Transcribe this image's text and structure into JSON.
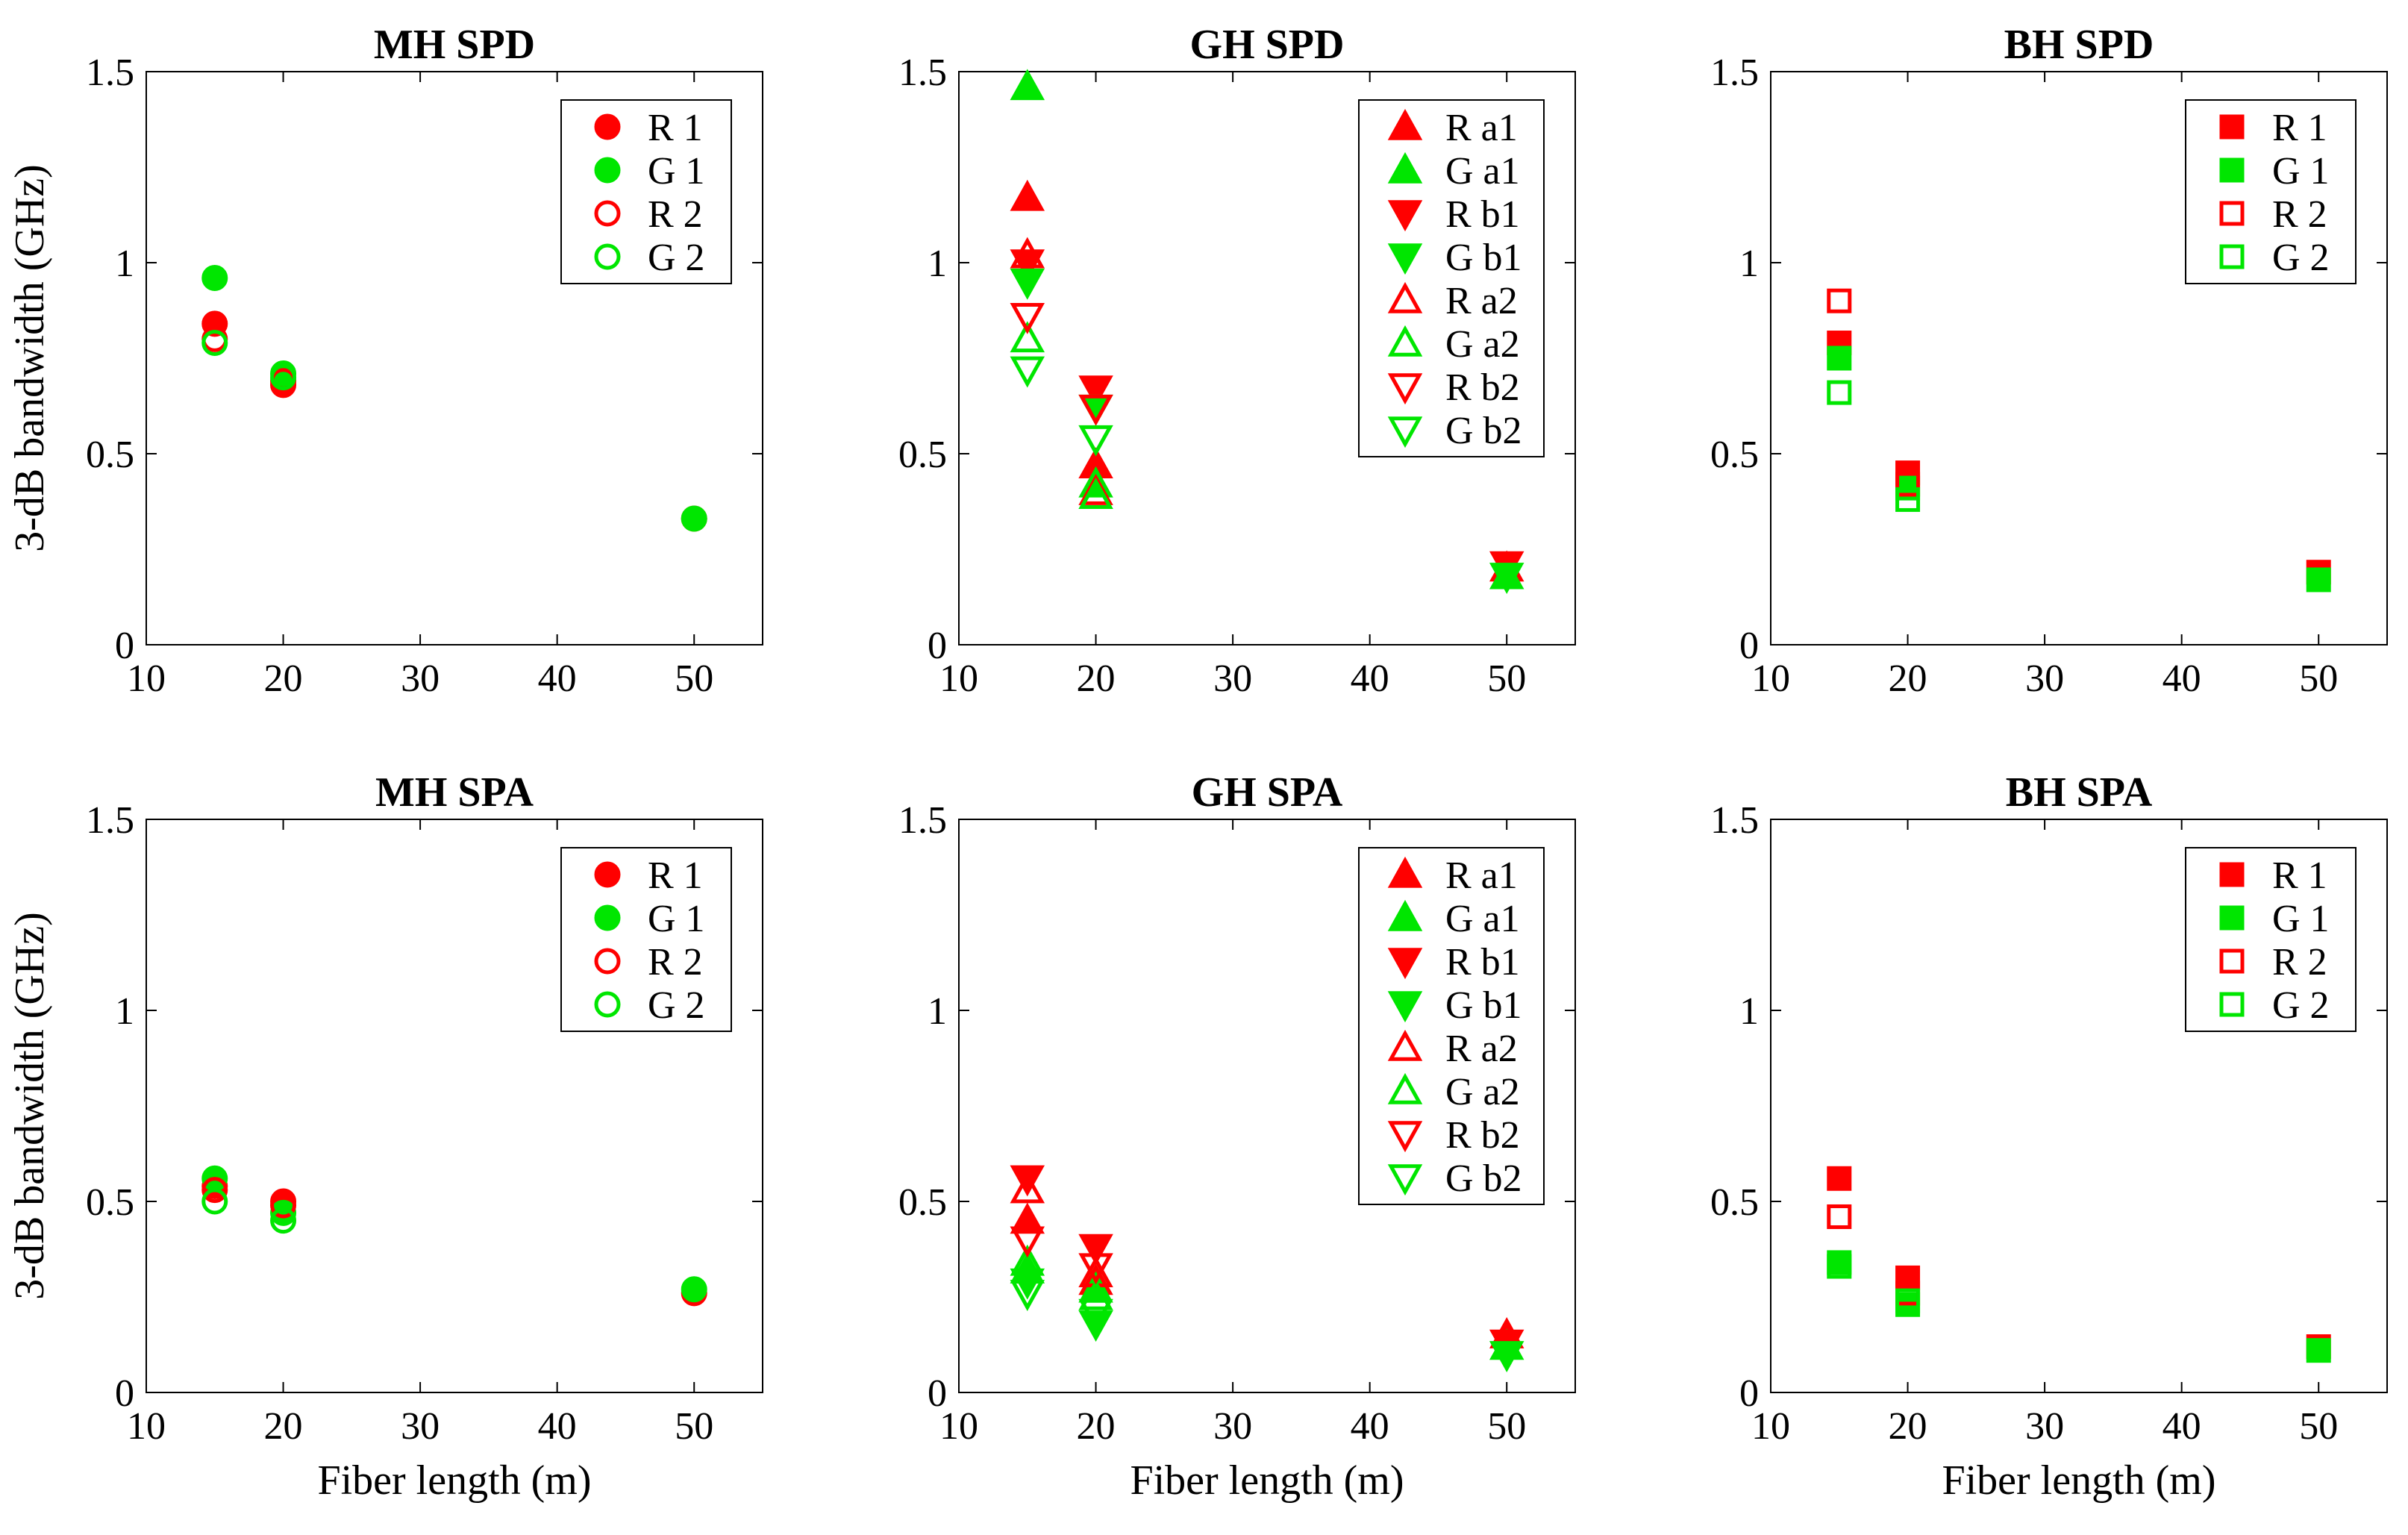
{
  "colors": {
    "red": "#ff0000",
    "green": "#00e600",
    "axis": "#000000",
    "background": "#ffffff"
  },
  "xlabel": "Fiber length (m)",
  "ylabel": "3-dB bandwidth (GHz)",
  "chart_data": [
    {
      "type": "scatter",
      "title": "MH SPD",
      "xlim": [
        10,
        55
      ],
      "ylim": [
        0,
        1.5
      ],
      "xticks": [
        "10",
        "20",
        "30",
        "40",
        "50"
      ],
      "yticks": [
        "0",
        "0.5",
        "1",
        "1.5"
      ],
      "legend": "top-right",
      "series": [
        {
          "name": "R 1",
          "color": "red",
          "marker": "circle",
          "filled": true,
          "x": [
            15,
            20,
            50
          ],
          "y": [
            0.84,
            0.68,
            0.33
          ]
        },
        {
          "name": "G 1",
          "color": "green",
          "marker": "circle",
          "filled": true,
          "x": [
            15,
            20,
            50
          ],
          "y": [
            0.96,
            0.71,
            0.33
          ]
        },
        {
          "name": "R 2",
          "color": "red",
          "marker": "circle",
          "filled": false,
          "x": [
            15,
            20
          ],
          "y": [
            0.8,
            0.69
          ]
        },
        {
          "name": "G 2",
          "color": "green",
          "marker": "circle",
          "filled": false,
          "x": [
            15,
            20
          ],
          "y": [
            0.79,
            0.7
          ]
        }
      ]
    },
    {
      "type": "scatter",
      "title": "GH SPD",
      "xlim": [
        10,
        55
      ],
      "ylim": [
        0,
        1.5
      ],
      "xticks": [
        "10",
        "20",
        "30",
        "40",
        "50"
      ],
      "yticks": [
        "0",
        "0.5",
        "1",
        "1.5"
      ],
      "legend": "top-right",
      "series": [
        {
          "name": "R a1",
          "color": "red",
          "marker": "triangle-up",
          "filled": true,
          "x": [
            15,
            20,
            50
          ],
          "y": [
            1.17,
            0.47,
            0.2
          ]
        },
        {
          "name": "G a1",
          "color": "green",
          "marker": "triangle-up",
          "filled": true,
          "x": [
            15,
            20,
            50
          ],
          "y": [
            1.46,
            0.42,
            0.18
          ]
        },
        {
          "name": "R b1",
          "color": "red",
          "marker": "triangle-down",
          "filled": true,
          "x": [
            15,
            20,
            50
          ],
          "y": [
            1.0,
            0.67,
            0.21
          ]
        },
        {
          "name": "G b1",
          "color": "green",
          "marker": "triangle-down",
          "filled": true,
          "x": [
            15,
            20,
            50
          ],
          "y": [
            0.95,
            0.62,
            0.18
          ]
        },
        {
          "name": "R a2",
          "color": "red",
          "marker": "triangle-up",
          "filled": false,
          "x": [
            15,
            20
          ],
          "y": [
            1.02,
            0.4
          ]
        },
        {
          "name": "G a2",
          "color": "green",
          "marker": "triangle-up",
          "filled": false,
          "x": [
            15,
            20
          ],
          "y": [
            0.8,
            0.39
          ]
        },
        {
          "name": "R b2",
          "color": "red",
          "marker": "triangle-down",
          "filled": false,
          "x": [
            15,
            20
          ],
          "y": [
            0.86,
            0.62
          ]
        },
        {
          "name": "G b2",
          "color": "green",
          "marker": "triangle-down",
          "filled": false,
          "x": [
            15,
            20
          ],
          "y": [
            0.72,
            0.54
          ]
        }
      ]
    },
    {
      "type": "scatter",
      "title": "BH SPD",
      "xlim": [
        10,
        55
      ],
      "ylim": [
        0,
        1.5
      ],
      "xticks": [
        "10",
        "20",
        "30",
        "40",
        "50"
      ],
      "yticks": [
        "0",
        "0.5",
        "1",
        "1.5"
      ],
      "legend": "top-right",
      "series": [
        {
          "name": "R 1",
          "color": "red",
          "marker": "square",
          "filled": true,
          "x": [
            15,
            20,
            50
          ],
          "y": [
            0.79,
            0.45,
            0.19
          ]
        },
        {
          "name": "G 1",
          "color": "green",
          "marker": "square",
          "filled": true,
          "x": [
            15,
            20,
            50
          ],
          "y": [
            0.75,
            0.41,
            0.17
          ]
        },
        {
          "name": "R 2",
          "color": "red",
          "marker": "square",
          "filled": false,
          "x": [
            15,
            20
          ],
          "y": [
            0.9,
            0.42
          ]
        },
        {
          "name": "G 2",
          "color": "green",
          "marker": "square",
          "filled": false,
          "x": [
            15,
            20
          ],
          "y": [
            0.66,
            0.38
          ]
        }
      ]
    },
    {
      "type": "scatter",
      "title": "MH SPA",
      "xlim": [
        10,
        55
      ],
      "ylim": [
        0,
        1.5
      ],
      "xticks": [
        "10",
        "20",
        "30",
        "40",
        "50"
      ],
      "yticks": [
        "0",
        "0.5",
        "1",
        "1.5"
      ],
      "legend": "top-right",
      "series": [
        {
          "name": "R 1",
          "color": "red",
          "marker": "circle",
          "filled": true,
          "x": [
            15,
            20,
            50
          ],
          "y": [
            0.54,
            0.5,
            0.26
          ]
        },
        {
          "name": "G 1",
          "color": "green",
          "marker": "circle",
          "filled": true,
          "x": [
            15,
            20,
            50
          ],
          "y": [
            0.56,
            0.47,
            0.27
          ]
        },
        {
          "name": "R 2",
          "color": "red",
          "marker": "circle",
          "filled": false,
          "x": [
            15,
            20
          ],
          "y": [
            0.53,
            0.49
          ]
        },
        {
          "name": "G 2",
          "color": "green",
          "marker": "circle",
          "filled": false,
          "x": [
            15,
            20
          ],
          "y": [
            0.5,
            0.45
          ]
        }
      ]
    },
    {
      "type": "scatter",
      "title": "GH SPA",
      "xlim": [
        10,
        55
      ],
      "ylim": [
        0,
        1.5
      ],
      "xticks": [
        "10",
        "20",
        "30",
        "40",
        "50"
      ],
      "yticks": [
        "0",
        "0.5",
        "1",
        "1.5"
      ],
      "legend": "top-right",
      "series": [
        {
          "name": "R a1",
          "color": "red",
          "marker": "triangle-up",
          "filled": true,
          "x": [
            15,
            20,
            50
          ],
          "y": [
            0.45,
            0.29,
            0.15
          ]
        },
        {
          "name": "G a1",
          "color": "green",
          "marker": "triangle-up",
          "filled": true,
          "x": [
            15,
            20,
            50
          ],
          "y": [
            0.32,
            0.27,
            0.12
          ]
        },
        {
          "name": "R b1",
          "color": "red",
          "marker": "triangle-down",
          "filled": true,
          "x": [
            15,
            20,
            50
          ],
          "y": [
            0.56,
            0.38,
            0.13
          ]
        },
        {
          "name": "G b1",
          "color": "green",
          "marker": "triangle-down",
          "filled": true,
          "x": [
            15,
            20,
            50
          ],
          "y": [
            0.29,
            0.18,
            0.1
          ]
        },
        {
          "name": "R a2",
          "color": "red",
          "marker": "triangle-up",
          "filled": false,
          "x": [
            15,
            20
          ],
          "y": [
            0.53,
            0.31
          ]
        },
        {
          "name": "G a2",
          "color": "green",
          "marker": "triangle-up",
          "filled": false,
          "x": [
            15,
            20
          ],
          "y": [
            0.34,
            0.25
          ]
        },
        {
          "name": "R b2",
          "color": "red",
          "marker": "triangle-down",
          "filled": false,
          "x": [
            15,
            20
          ],
          "y": [
            0.4,
            0.33
          ]
        },
        {
          "name": "G b2",
          "color": "green",
          "marker": "triangle-down",
          "filled": false,
          "x": [
            15,
            20
          ],
          "y": [
            0.26,
            0.21
          ]
        }
      ]
    },
    {
      "type": "scatter",
      "title": "BH SPA",
      "xlim": [
        10,
        55
      ],
      "ylim": [
        0,
        1.5
      ],
      "xticks": [
        "10",
        "20",
        "30",
        "40",
        "50"
      ],
      "yticks": [
        "0",
        "0.5",
        "1",
        "1.5"
      ],
      "legend": "top-right",
      "series": [
        {
          "name": "R 1",
          "color": "red",
          "marker": "square",
          "filled": true,
          "x": [
            15,
            20,
            50
          ],
          "y": [
            0.56,
            0.3,
            0.12
          ]
        },
        {
          "name": "G 1",
          "color": "green",
          "marker": "square",
          "filled": true,
          "x": [
            15,
            20,
            50
          ],
          "y": [
            0.34,
            0.23,
            0.11
          ]
        },
        {
          "name": "R 2",
          "color": "red",
          "marker": "square",
          "filled": false,
          "x": [
            15,
            20
          ],
          "y": [
            0.46,
            0.26
          ]
        },
        {
          "name": "G 2",
          "color": "green",
          "marker": "square",
          "filled": false,
          "x": [
            15,
            20
          ],
          "y": [
            0.33,
            0.24
          ]
        }
      ]
    }
  ]
}
